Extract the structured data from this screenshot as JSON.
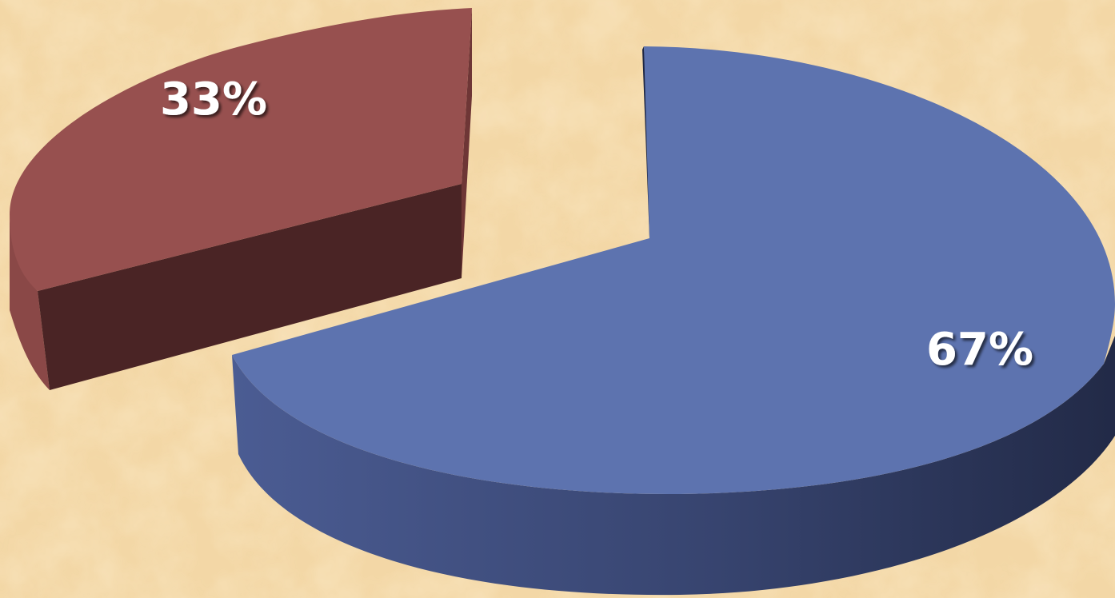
{
  "chart_data": {
    "type": "pie",
    "style": "3d-exploded",
    "slices": [
      {
        "value": 67,
        "label": "67%",
        "color": "#5D73AF",
        "side_color": "#3B4A7A"
      },
      {
        "value": 33,
        "label": "33%",
        "color": "#97504F",
        "side_color": "#4A2425"
      }
    ],
    "legend": "none"
  },
  "background": {
    "color": "#F3D7A6",
    "texture": "parchment"
  }
}
